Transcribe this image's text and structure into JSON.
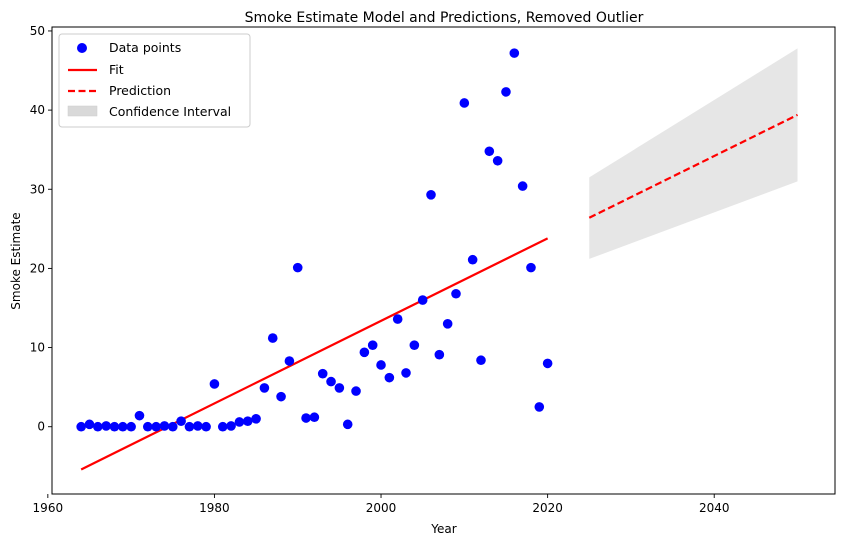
{
  "chart_data": {
    "type": "scatter",
    "title": "Smoke Estimate Model and Predictions, Removed Outlier",
    "xlabel": "Year",
    "ylabel": "Smoke Estimate",
    "xlim": [
      1960.5,
      2054.5
    ],
    "ylim": [
      -8.5,
      50.5
    ],
    "x_ticks": [
      1960,
      1980,
      2000,
      2020,
      2040
    ],
    "y_ticks": [
      0,
      10,
      20,
      30,
      40,
      50
    ],
    "grid": false,
    "legend_position": "top-left",
    "legend": [
      "Data points",
      "Fit",
      "Prediction",
      "Confidence Interval"
    ],
    "colors": {
      "points": "#0000ff",
      "fit": "#ff0000",
      "prediction": "#ff0000",
      "ci": "#d9d9d9"
    },
    "series": [
      {
        "name": "Data points",
        "type": "scatter",
        "x": [
          1964,
          1965,
          1966,
          1967,
          1968,
          1969,
          1970,
          1971,
          1972,
          1973,
          1974,
          1975,
          1976,
          1977,
          1978,
          1979,
          1980,
          1981,
          1982,
          1983,
          1984,
          1985,
          1986,
          1987,
          1988,
          1989,
          1990,
          1991,
          1992,
          1993,
          1994,
          1995,
          1996,
          1997,
          1998,
          1999,
          2000,
          2001,
          2002,
          2003,
          2004,
          2005,
          2006,
          2007,
          2008,
          2009,
          2010,
          2011,
          2012,
          2013,
          2014,
          2015,
          2016,
          2017,
          2018,
          2019,
          2020
        ],
        "y": [
          0.0,
          0.3,
          0.0,
          0.1,
          0.0,
          0.0,
          0.0,
          1.4,
          0.0,
          0.0,
          0.1,
          0.0,
          0.7,
          0.0,
          0.1,
          0.0,
          5.4,
          0.0,
          0.1,
          0.6,
          0.7,
          1.0,
          4.9,
          11.2,
          3.8,
          8.3,
          20.1,
          1.1,
          1.2,
          6.7,
          5.7,
          4.9,
          0.3,
          4.5,
          9.4,
          10.3,
          7.8,
          6.2,
          13.6,
          6.8,
          10.3,
          16.0,
          29.3,
          9.1,
          13.0,
          16.8,
          40.9,
          21.1,
          8.4,
          34.8,
          33.6,
          42.3,
          47.2,
          30.4,
          20.1,
          2.5,
          8.0
        ]
      },
      {
        "name": "Fit",
        "type": "line",
        "x": [
          1964,
          2020
        ],
        "y": [
          -5.4,
          23.8
        ]
      },
      {
        "name": "Prediction",
        "type": "line",
        "x": [
          2025,
          2050
        ],
        "y": [
          26.4,
          39.4
        ]
      },
      {
        "name": "Confidence Interval",
        "type": "area",
        "x": [
          2025,
          2050
        ],
        "lower": [
          21.2,
          31.0
        ],
        "upper": [
          31.5,
          47.8
        ]
      }
    ]
  }
}
